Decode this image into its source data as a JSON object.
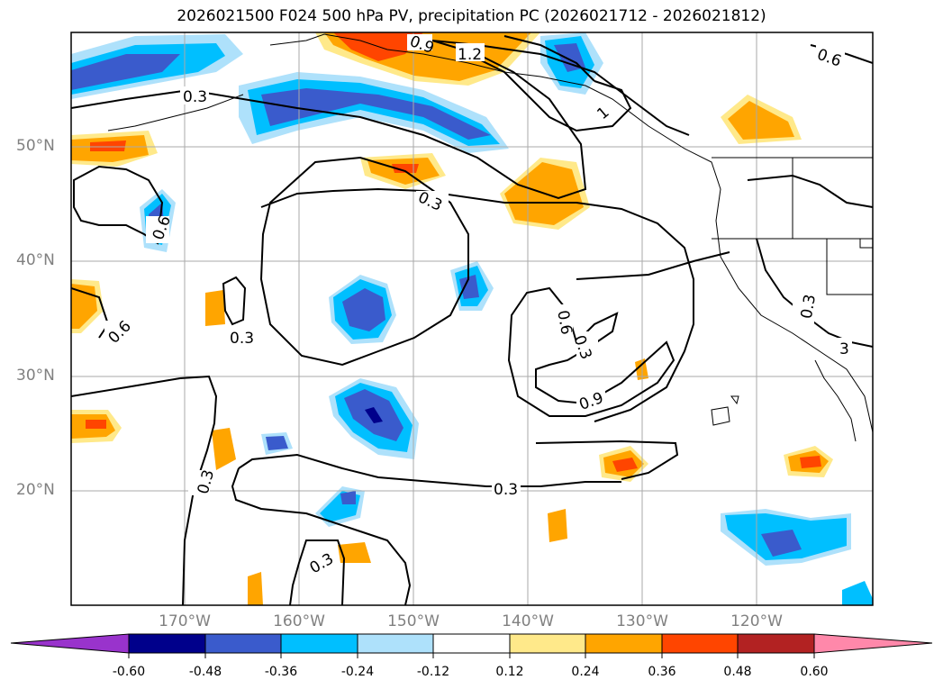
{
  "title": "2026021500 F024 500 hPa PV, precipitation PC (2026021712 - 2026021812)",
  "latitude_labels": [
    "50°N",
    "40°N",
    "30°N",
    "20°N"
  ],
  "longitude_labels": [
    "170°W",
    "160°W",
    "150°W",
    "140°W",
    "130°W",
    "120°W"
  ],
  "contour_labels": [
    "0.3",
    "0.3",
    "0.3",
    "0.3",
    "0.3",
    "0.3",
    "0.3",
    "0.6",
    "0.6",
    "0.6",
    "0.6",
    "0.9",
    "0.9",
    "1.2",
    "1",
    "0.3",
    "3"
  ],
  "colorbar": {
    "ticks": [
      "-0.60",
      "-0.48",
      "-0.36",
      "-0.24",
      "-0.12",
      "0.12",
      "0.24",
      "0.36",
      "0.48",
      "0.60"
    ],
    "colors": [
      "#9933cc",
      "#00008b",
      "#3a5bcc",
      "#00bfff",
      "#aee1fb",
      "#ffffff",
      "#ffe98a",
      "#ffa500",
      "#ff4500",
      "#b22222",
      "#ff88aa"
    ]
  }
}
